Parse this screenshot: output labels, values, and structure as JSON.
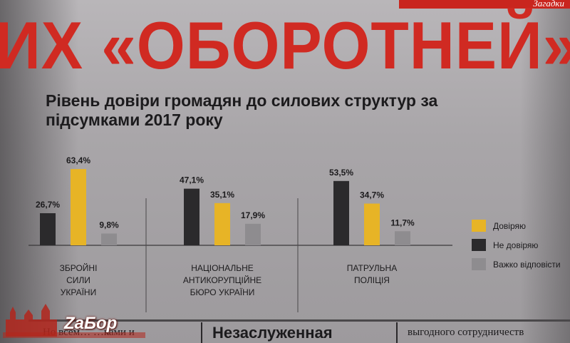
{
  "header": {
    "headline": "ИХ «ОБОРОТНЕЙ»",
    "strip_text": "Загадки"
  },
  "chart_data": {
    "type": "bar",
    "title": "Рівень довіри громадян до силових структур за підсумками 2017 року",
    "categories": [
      [
        "ЗБРОЙНІ",
        "СИЛИ",
        "УКРАЇНИ"
      ],
      [
        "НАЦІОНАЛЬНЕ",
        "АНТИКОРУПЦІЙНЕ",
        "БЮРО УКРАЇНИ"
      ],
      [
        "ПАТРУЛЬНА",
        "ПОЛІЦІЯ"
      ]
    ],
    "series": [
      {
        "name": "Не довіряю",
        "values": [
          26.7,
          47.1,
          53.5
        ],
        "labels": [
          "26,7%",
          "47,1%",
          "53,5%"
        ],
        "color": "#2b2a2c"
      },
      {
        "name": "Довіряю",
        "values": [
          63.4,
          35.1,
          34.7
        ],
        "labels": [
          "63,4%",
          "35,1%",
          "34,7%"
        ],
        "color": "#e7b426"
      },
      {
        "name": "Важко відповісти",
        "values": [
          9.8,
          17.9,
          11.7
        ],
        "labels": [
          "9,8%",
          "17,9%",
          "11,7%"
        ],
        "color": "#8e8c8f"
      }
    ],
    "legend": [
      {
        "name": "Довіряю",
        "color": "#e7b426"
      },
      {
        "name": "Не довіряю",
        "color": "#2b2a2c"
      },
      {
        "name": "Важко відповісти",
        "color": "#8e8c8f"
      }
    ],
    "legend_position": "right",
    "ylim": [
      0,
      70
    ],
    "grid": false
  },
  "bottom": {
    "left_text": "Но всем… …ками и",
    "headline": "Незаслуженная",
    "right_text": "выгодного сотрудничеств"
  },
  "watermark": {
    "text": "ZaБор"
  }
}
